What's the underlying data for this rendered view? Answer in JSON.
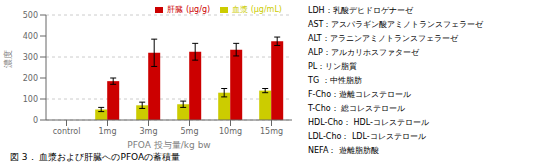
{
  "chart_data": {
    "type": "bar",
    "title": "図 3． 血漿および肝臓へのPFOAの蓄積量",
    "xlabel": "PFOA 投与量/kg bw",
    "ylabel": "濃度",
    "categories": [
      "control",
      "1mg",
      "3mg",
      "5mg",
      "10mg",
      "15mg"
    ],
    "series": [
      {
        "name": "血漿 (μg/mL)",
        "color": "#cccc00",
        "values": [
          0,
          50,
          70,
          75,
          130,
          140
        ],
        "errors": [
          0,
          10,
          15,
          15,
          20,
          10
        ]
      },
      {
        "name": "肝臓 (μg/g)",
        "color": "#cc0000",
        "values": [
          0,
          185,
          320,
          325,
          335,
          375
        ],
        "errors": [
          0,
          15,
          65,
          40,
          30,
          20
        ]
      }
    ],
    "ylim": [
      0,
      500
    ],
    "yticks": [
      0,
      100,
      200,
      300,
      400,
      500
    ],
    "grid": true,
    "legend": "upper right",
    "annotations": [
      "LDH：乳酸デヒドロゲナーゼ",
      "AST：アスパラギン酸アミノトランスフェラーゼ",
      "ALT：アラニンアミノトランスフェラーゼ",
      "ALP：アルカリホスファターゼ",
      "PL：リン脂質",
      "TG ：中性脂肪",
      "F-Cho：遊離コレステロール",
      "T-Cho： 総コレステロール",
      "HDL-Cho： HDL-コレステロール",
      "LDL-Cho： LDL-コレステロール",
      "NEFA： 遊離脂肪酸"
    ]
  }
}
